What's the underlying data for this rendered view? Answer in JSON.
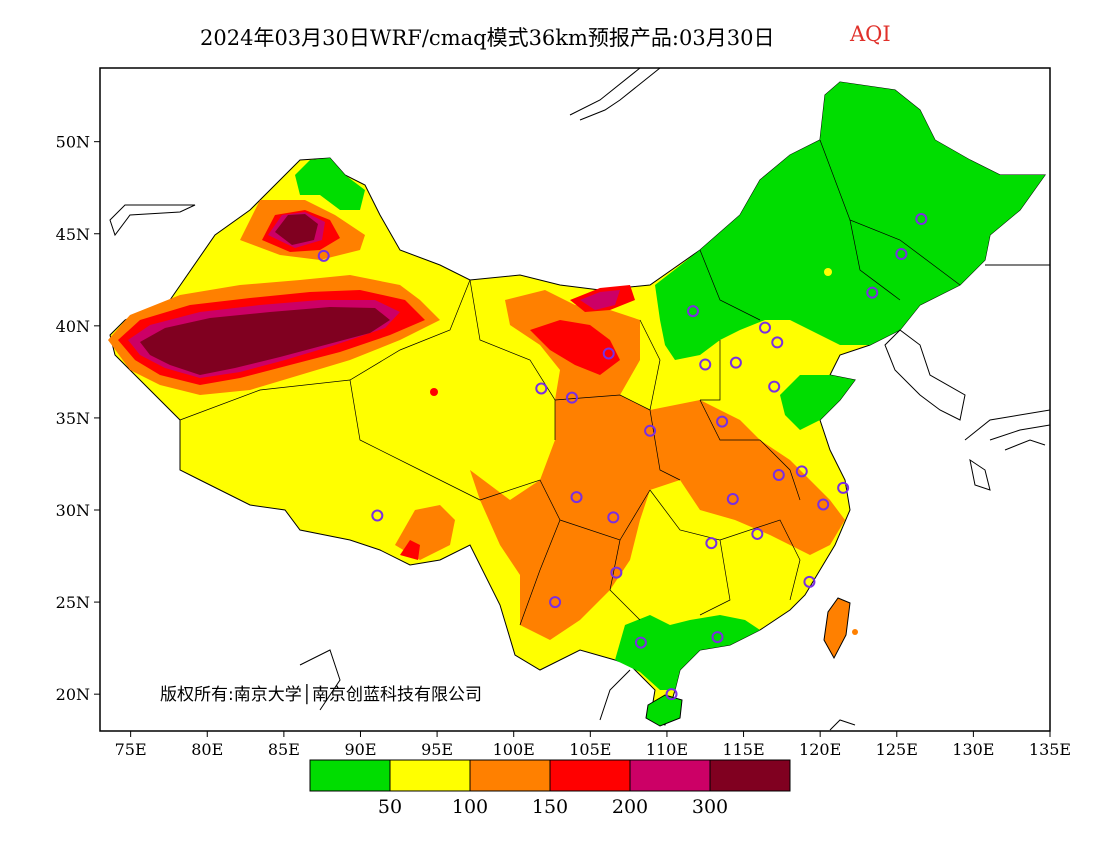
{
  "title": {
    "main": "2024年03月30日WRF/cmaq模式36km预报产品:03月30日",
    "variable": "AQI",
    "variable_color": "#e0302a"
  },
  "copyright": "版权所有:南京大学│南京创蓝科技有限公司",
  "map": {
    "lon_range": [
      73,
      135
    ],
    "lat_range": [
      18,
      54
    ],
    "lon_ticks": [
      "75E",
      "80E",
      "85E",
      "90E",
      "95E",
      "100E",
      "105E",
      "110E",
      "115E",
      "120E",
      "125E",
      "130E",
      "135E"
    ],
    "lat_ticks": [
      "20N",
      "25N",
      "30N",
      "35N",
      "40N",
      "45N",
      "50N"
    ],
    "lon_values": [
      75,
      80,
      85,
      90,
      95,
      100,
      105,
      110,
      115,
      120,
      125,
      130,
      135
    ],
    "lat_values": [
      20,
      25,
      30,
      35,
      40,
      45,
      50
    ],
    "city_marker_color": "#7a2fe0",
    "city_markers": [
      {
        "lon": 126.6,
        "lat": 45.8
      },
      {
        "lon": 125.3,
        "lat": 43.9
      },
      {
        "lon": 123.4,
        "lat": 41.8
      },
      {
        "lon": 111.7,
        "lat": 40.8
      },
      {
        "lon": 116.4,
        "lat": 39.9
      },
      {
        "lon": 117.2,
        "lat": 39.1
      },
      {
        "lon": 114.5,
        "lat": 38.0
      },
      {
        "lon": 112.5,
        "lat": 37.9
      },
      {
        "lon": 117.0,
        "lat": 36.7
      },
      {
        "lon": 106.2,
        "lat": 38.5
      },
      {
        "lon": 103.8,
        "lat": 36.1
      },
      {
        "lon": 101.8,
        "lat": 36.6
      },
      {
        "lon": 108.9,
        "lat": 34.3
      },
      {
        "lon": 113.6,
        "lat": 34.8
      },
      {
        "lon": 117.3,
        "lat": 31.9
      },
      {
        "lon": 118.8,
        "lat": 32.1
      },
      {
        "lon": 121.5,
        "lat": 31.2
      },
      {
        "lon": 120.2,
        "lat": 30.3
      },
      {
        "lon": 114.3,
        "lat": 30.6
      },
      {
        "lon": 115.9,
        "lat": 28.7
      },
      {
        "lon": 112.9,
        "lat": 28.2
      },
      {
        "lon": 104.1,
        "lat": 30.7
      },
      {
        "lon": 106.5,
        "lat": 29.6
      },
      {
        "lon": 106.7,
        "lat": 26.6
      },
      {
        "lon": 102.7,
        "lat": 25.0
      },
      {
        "lon": 108.3,
        "lat": 22.8
      },
      {
        "lon": 113.3,
        "lat": 23.1
      },
      {
        "lon": 119.3,
        "lat": 26.1
      },
      {
        "lon": 110.3,
        "lat": 20.0
      },
      {
        "lon": 87.6,
        "lat": 43.8
      },
      {
        "lon": 91.1,
        "lat": 29.7
      }
    ]
  },
  "legend": {
    "colors": [
      "#00dd00",
      "#ffff00",
      "#ff8000",
      "#ff0000",
      "#cc0066",
      "#800020"
    ],
    "labels": [
      "50",
      "100",
      "150",
      "200",
      "300"
    ]
  }
}
